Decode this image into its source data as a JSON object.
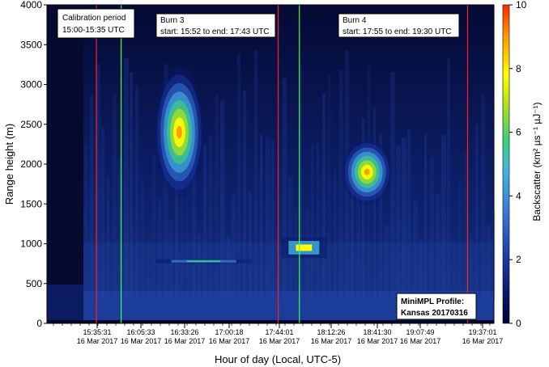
{
  "chart_data": {
    "type": "heatmap",
    "title": "",
    "xlabel": "Hour of day (Local, UTC-5)",
    "ylabel": "Range height (m)",
    "colorbar_label": "Backscatter (km² µs⁻¹ µJ⁻¹)",
    "ylim": [
      0,
      4000
    ],
    "clim": [
      0,
      10
    ],
    "y_ticks": [
      0,
      500,
      1000,
      1500,
      2000,
      2500,
      3000,
      3500,
      4000
    ],
    "colorbar_ticks": [
      0,
      2,
      4,
      6,
      8,
      10
    ],
    "x_ticks": [
      {
        "time": "15:35:31",
        "date": "16 Mar 2017"
      },
      {
        "time": "16:05:33",
        "date": "16 Mar 2017"
      },
      {
        "time": "16:33:26",
        "date": "16 Mar 2017"
      },
      {
        "time": "17:00:18",
        "date": "16 Mar 2017"
      },
      {
        "time": "17:44:01",
        "date": "16 Mar 2017"
      },
      {
        "time": "18:12:26",
        "date": "16 Mar 2017"
      },
      {
        "time": "18:41:30",
        "date": "16 Mar 2017"
      },
      {
        "time": "19:07:49",
        "date": "16 Mar 2017"
      },
      {
        "time": "19:37:01",
        "date": "16 Mar 2017"
      }
    ],
    "colormap": [
      "#000033",
      "#0a1a6e",
      "#1f3fae",
      "#3a7ad8",
      "#42b6e0",
      "#3fd07a",
      "#a8e020",
      "#ffff00",
      "#ff9900",
      "#ff2a00"
    ],
    "vertical_lines": [
      {
        "time": "15:35",
        "color": "#ff2020",
        "label": "calibration end"
      },
      {
        "time": "15:52",
        "color": "#40ff40",
        "label": "burn 3 start"
      },
      {
        "time": "17:43",
        "color": "#ff2020",
        "label": "burn 3 end"
      },
      {
        "time": "17:55",
        "color": "#40ff40",
        "label": "burn 4 start"
      },
      {
        "time": "19:30",
        "color": "#ff2020",
        "label": "burn 4 end"
      }
    ],
    "features": [
      {
        "name": "smoke plume burn 3",
        "start": "16:25",
        "end": "16:35",
        "height": [
          2200,
          2600
        ],
        "peak_backscatter": 9
      },
      {
        "name": "smoke plume burn 4",
        "start": "18:30",
        "end": "18:40",
        "height": [
          1800,
          2000
        ],
        "peak_backscatter": 9
      },
      {
        "name": "low layer burn 3",
        "start": "16:15",
        "end": "17:20",
        "height": [
          760,
          800
        ],
        "peak_backscatter": 5
      },
      {
        "name": "low layer burn 4",
        "start": "17:45",
        "end": "18:10",
        "height": [
          850,
          1050
        ],
        "peak_backscatter": 8
      }
    ]
  },
  "annotations": {
    "calibration": {
      "line1": "Calibration period",
      "line2": "15:00-15:35 UTC"
    },
    "burn3": {
      "line1": "Burn 3",
      "line2": "start: 15:52 to end: 17:43 UTC"
    },
    "burn4": {
      "line1": "Burn 4",
      "line2": "start: 17:55 to end: 19:30 UTC"
    },
    "profile": {
      "line1": "MiniMPL Profile:",
      "line2": "Kansas 20170316"
    }
  }
}
